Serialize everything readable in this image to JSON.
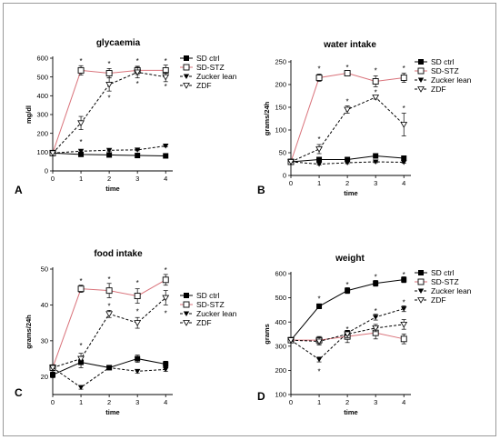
{
  "chart_data": [
    {
      "type": "line",
      "panel_label": "A",
      "title": "glycaemia",
      "xlabel": "time",
      "ylabel": "mg/dl",
      "ylim": [
        0,
        600
      ],
      "yticks": [
        0,
        100,
        200,
        300,
        400,
        500,
        600
      ],
      "x": [
        0,
        1,
        2,
        3,
        4
      ],
      "legend_position": "right",
      "series": [
        {
          "name": "SD ctrl",
          "values": [
            95,
            88,
            85,
            82,
            80
          ],
          "errors": [
            0,
            6,
            5,
            5,
            4
          ]
        },
        {
          "name": "SD-STZ",
          "values": [
            95,
            535,
            520,
            535,
            535
          ],
          "errors": [
            0,
            25,
            25,
            22,
            28
          ]
        },
        {
          "name": "Zucker lean",
          "values": [
            95,
            105,
            110,
            112,
            133
          ],
          "errors": [
            0,
            5,
            5,
            5,
            5
          ]
        },
        {
          "name": "ZDF",
          "values": [
            95,
            255,
            460,
            525,
            500
          ],
          "errors": [
            0,
            35,
            35,
            30,
            25
          ]
        }
      ],
      "asterisks": [
        {
          "x": 1,
          "y": 590
        },
        {
          "x": 2,
          "y": 575
        },
        {
          "x": 3,
          "y": 590
        },
        {
          "x": 4,
          "y": 590
        },
        {
          "x": 1,
          "y": 160
        },
        {
          "x": 2,
          "y": 395
        },
        {
          "x": 3,
          "y": 470
        },
        {
          "x": 4,
          "y": 455
        }
      ]
    },
    {
      "type": "line",
      "panel_label": "B",
      "title": "water intake",
      "xlabel": "time",
      "ylabel": "grams/24h",
      "ylim": [
        0,
        250
      ],
      "yticks": [
        0,
        50,
        100,
        150,
        200,
        250
      ],
      "x": [
        0,
        1,
        2,
        3,
        4
      ],
      "legend_position": "right",
      "series": [
        {
          "name": "SD ctrl",
          "values": [
            30,
            35,
            35,
            43,
            38
          ],
          "errors": [
            0,
            3,
            3,
            3,
            3
          ]
        },
        {
          "name": "SD-STZ",
          "values": [
            30,
            215,
            225,
            207,
            215
          ],
          "errors": [
            0,
            8,
            5,
            12,
            10
          ]
        },
        {
          "name": "Zucker lean",
          "values": [
            30,
            25,
            28,
            30,
            29
          ],
          "errors": [
            0,
            2,
            2,
            2,
            2
          ]
        },
        {
          "name": "ZDF",
          "values": [
            30,
            58,
            145,
            172,
            112
          ],
          "errors": [
            0,
            10,
            8,
            4,
            25
          ]
        }
      ],
      "asterisks": [
        {
          "x": 1,
          "y": 237
        },
        {
          "x": 2,
          "y": 240
        },
        {
          "x": 3,
          "y": 233
        },
        {
          "x": 4,
          "y": 238
        },
        {
          "x": 1,
          "y": 82
        },
        {
          "x": 2,
          "y": 165
        },
        {
          "x": 3,
          "y": 185
        },
        {
          "x": 4,
          "y": 150
        }
      ]
    },
    {
      "type": "line",
      "panel_label": "C",
      "title": "food intake",
      "xlabel": "time",
      "ylabel": "grams/24h",
      "ylim": [
        15,
        50
      ],
      "yticks": [
        20,
        30,
        40,
        50
      ],
      "x": [
        0,
        1,
        2,
        3,
        4
      ],
      "legend_position": "right",
      "series": [
        {
          "name": "SD ctrl",
          "values": [
            20.5,
            24,
            22.5,
            25,
            23.5
          ],
          "errors": [
            0.8,
            1.5,
            0.5,
            1,
            0.8
          ]
        },
        {
          "name": "SD-STZ",
          "values": [
            22.5,
            44.5,
            44,
            42.5,
            47
          ],
          "errors": [
            0.8,
            1,
            2,
            2,
            1.5
          ]
        },
        {
          "name": "Zucker lean",
          "values": [
            22.5,
            17,
            22.5,
            21.5,
            22
          ],
          "errors": [
            0,
            0.5,
            0.5,
            0.5,
            0.5
          ]
        },
        {
          "name": "ZDF",
          "values": [
            22.5,
            25,
            37.5,
            35,
            42
          ],
          "errors": [
            0,
            1.5,
            1,
            1.5,
            2
          ]
        }
      ],
      "asterisks": [
        {
          "x": 1,
          "y": 47
        },
        {
          "x": 2,
          "y": 47.5
        },
        {
          "x": 3,
          "y": 46.5
        },
        {
          "x": 4,
          "y": 50
        },
        {
          "x": 1,
          "y": 29
        },
        {
          "x": 2,
          "y": 40
        },
        {
          "x": 3,
          "y": 38.5
        },
        {
          "x": 4,
          "y": 38
        }
      ]
    },
    {
      "type": "line",
      "panel_label": "D",
      "title": "weight",
      "xlabel": "time",
      "ylabel": "grams",
      "ylim": [
        100,
        600
      ],
      "yticks": [
        100,
        200,
        300,
        400,
        500,
        600
      ],
      "x": [
        0,
        1,
        2,
        3,
        4
      ],
      "legend_position": "right",
      "series": [
        {
          "name": "SD ctrl",
          "values": [
            325,
            465,
            530,
            560,
            575
          ],
          "errors": [
            8,
            10,
            12,
            12,
            12
          ]
        },
        {
          "name": "SD-STZ",
          "values": [
            325,
            325,
            340,
            355,
            330
          ],
          "errors": [
            8,
            15,
            25,
            25,
            20
          ]
        },
        {
          "name": "Zucker lean",
          "values": [
            325,
            245,
            355,
            420,
            455
          ],
          "errors": [
            0,
            10,
            10,
            12,
            12
          ]
        },
        {
          "name": "ZDF",
          "values": [
            325,
            320,
            350,
            375,
            390
          ],
          "errors": [
            0,
            15,
            15,
            15,
            20
          ]
        }
      ],
      "asterisks": [
        {
          "x": 1,
          "y": 500
        },
        {
          "x": 2,
          "y": 558
        },
        {
          "x": 3,
          "y": 590
        },
        {
          "x": 4,
          "y": 600
        },
        {
          "x": 1,
          "y": 200
        },
        {
          "x": 2,
          "y": 375
        },
        {
          "x": 3,
          "y": 450
        },
        {
          "x": 4,
          "y": 485
        }
      ]
    }
  ],
  "colors": {
    "sd_stz": "#d9727a",
    "black": "#000000",
    "frame": "#9a9a9a"
  }
}
